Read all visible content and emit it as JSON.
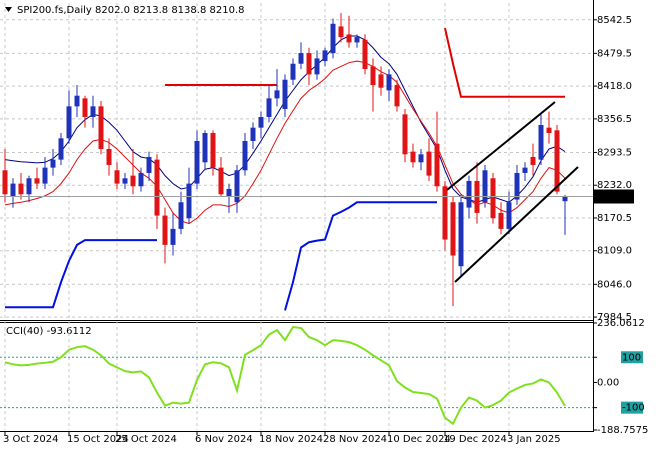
{
  "chart_data": [
    {
      "type": "candlestick",
      "title": "SPI200.fs,Daily  8202.0 8213.8 8138.8 8210.8",
      "categories": [
        "3 Oct 2024",
        null,
        null,
        null,
        null,
        null,
        null,
        null,
        "15 Oct 2024",
        null,
        null,
        null,
        null,
        null,
        "25 Oct 2024",
        null,
        null,
        null,
        null,
        null,
        null,
        null,
        null,
        null,
        "6 Nov 2024",
        null,
        null,
        null,
        null,
        null,
        null,
        null,
        "18 Nov 2024",
        null,
        null,
        null,
        null,
        null,
        null,
        null,
        "28 Nov 2024",
        null,
        null,
        null,
        null,
        null,
        null,
        null,
        "10 Dec 2024",
        null,
        null,
        null,
        null,
        null,
        null,
        "19 Dec 2024",
        null,
        null,
        null,
        null,
        null,
        null,
        null,
        "3 Jan 2025",
        null,
        null,
        null,
        null,
        null,
        null,
        null
      ],
      "open": [
        8260,
        8210,
        8235,
        8215,
        8245,
        8235,
        8265,
        8280,
        8320,
        8380,
        8395,
        8360,
        8380,
        8300,
        8260,
        8235,
        8250,
        8230,
        8255,
        8280,
        8175,
        8120,
        8150,
        8170,
        8235,
        8275,
        8330,
        8265,
        8210,
        8200,
        8260,
        8315,
        8340,
        8360,
        8395,
        8375,
        8430,
        8460,
        8480,
        8440,
        8465,
        8480,
        8530,
        8515,
        8500,
        8505,
        8455,
        8440,
        8410,
        8420,
        8365,
        8295,
        8275,
        8295,
        8310,
        8230,
        8200,
        8080,
        8190,
        8240,
        8200,
        8245,
        8180,
        8150,
        8205,
        8255,
        8285,
        8280,
        8340,
        8335,
        8202.0
      ],
      "high": [
        8300,
        8245,
        8255,
        8250,
        8265,
        8285,
        8300,
        8330,
        8410,
        8420,
        8400,
        8400,
        8390,
        8320,
        8275,
        8255,
        8300,
        8265,
        8295,
        8290,
        8190,
        8180,
        8220,
        8265,
        8335,
        8335,
        8335,
        8285,
        8235,
        8270,
        8330,
        8350,
        8370,
        8420,
        8450,
        8440,
        8470,
        8500,
        8490,
        8485,
        8490,
        8545,
        8555,
        8550,
        8515,
        8515,
        8470,
        8455,
        8450,
        8430,
        8375,
        8310,
        8300,
        8320,
        8370,
        8240,
        8210,
        8215,
        8250,
        8275,
        8270,
        8255,
        8200,
        8220,
        8270,
        8275,
        8310,
        8365,
        8370,
        8345,
        8213.8
      ],
      "low": [
        8200,
        8190,
        8205,
        8200,
        8225,
        8225,
        8250,
        8270,
        8310,
        8360,
        8340,
        8340,
        8290,
        8250,
        8225,
        8225,
        8215,
        8220,
        8240,
        8150,
        8085,
        8100,
        8140,
        8160,
        8225,
        8260,
        8250,
        8210,
        8180,
        8180,
        8250,
        8300,
        8320,
        8350,
        8380,
        8360,
        8420,
        8450,
        8420,
        8430,
        8455,
        8470,
        8500,
        8490,
        8490,
        8440,
        8370,
        8400,
        8390,
        8370,
        8275,
        8265,
        8260,
        8240,
        8220,
        8110,
        8005,
        8060,
        8170,
        8160,
        8190,
        8160,
        8140,
        8140,
        8195,
        8240,
        8250,
        8270,
        8310,
        8215,
        8138.8
      ],
      "close": [
        8215,
        8235,
        8215,
        8245,
        8235,
        8265,
        8280,
        8320,
        8380,
        8400,
        8360,
        8380,
        8300,
        8270,
        8235,
        8245,
        8230,
        8255,
        8285,
        8175,
        8120,
        8150,
        8200,
        8235,
        8315,
        8330,
        8265,
        8215,
        8225,
        8260,
        8315,
        8340,
        8360,
        8395,
        8410,
        8430,
        8460,
        8480,
        8440,
        8470,
        8485,
        8535,
        8510,
        8500,
        8510,
        8450,
        8420,
        8415,
        8440,
        8380,
        8290,
        8275,
        8290,
        8250,
        8230,
        8130,
        8100,
        8200,
        8240,
        8180,
        8260,
        8170,
        8150,
        8200,
        8255,
        8265,
        8270,
        8345,
        8330,
        8220,
        8210.8
      ],
      "colors": {
        "up": "#1f33b8",
        "down": "#e01414"
      },
      "lines": [
        {
          "color": "#000080",
          "values": [
            8280,
            8278,
            8276,
            8275,
            8274,
            8275,
            8282,
            8295,
            8315,
            8340,
            8355,
            8365,
            8362,
            8350,
            8335,
            8315,
            8295,
            8285,
            8282,
            8270,
            8250,
            8235,
            8225,
            8228,
            8245,
            8262,
            8265,
            8258,
            8250,
            8255,
            8270,
            8292,
            8315,
            8340,
            8365,
            8390,
            8410,
            8430,
            8445,
            8458,
            8472,
            8490,
            8505,
            8512,
            8512,
            8505,
            8490,
            8472,
            8460,
            8440,
            8410,
            8380,
            8350,
            8325,
            8300,
            8260,
            8225,
            8210,
            8205,
            8200,
            8205,
            8210,
            8205,
            8200,
            8212,
            8228,
            8248,
            8278,
            8300,
            8305,
            8295
          ]
        },
        {
          "color": "#dd1111",
          "values": [
            8195,
            8198,
            8200,
            8203,
            8207,
            8212,
            8220,
            8235,
            8255,
            8280,
            8300,
            8315,
            8318,
            8312,
            8300,
            8285,
            8270,
            8255,
            8245,
            8230,
            8205,
            8180,
            8165,
            8160,
            8170,
            8185,
            8195,
            8195,
            8192,
            8198,
            8212,
            8235,
            8260,
            8290,
            8320,
            8348,
            8372,
            8395,
            8410,
            8420,
            8432,
            8448,
            8455,
            8462,
            8465,
            8462,
            8455,
            8445,
            8438,
            8425,
            8400,
            8375,
            8352,
            8330,
            8305,
            8270,
            8235,
            8215,
            8205,
            8195,
            8200,
            8195,
            8185,
            8180,
            8190,
            8205,
            8220,
            8245,
            8265,
            8260,
            8245
          ]
        },
        {
          "color": "#0010e0",
          "values": [
            8003,
            8003,
            8003,
            8003,
            8003,
            8003,
            8003,
            8050,
            8090,
            8120,
            8129,
            8129,
            8129,
            8129,
            8129,
            8129,
            8129,
            8129,
            8129,
            8129,
            null,
            null,
            null,
            null,
            null,
            null,
            null,
            null,
            null,
            null,
            null,
            null,
            null,
            null,
            null,
            7997,
            8050,
            8115,
            8125,
            8128,
            8130,
            8175,
            8182,
            8190,
            8200,
            8200,
            8200,
            8200,
            8200,
            8200,
            8200,
            8200,
            8200,
            8200,
            8200,
            null,
            null,
            null,
            null,
            null,
            null,
            null,
            null,
            null,
            null,
            null,
            null,
            null,
            null,
            null,
            null
          ]
        },
        {
          "color": "#e00000",
          "values": [
            null,
            null,
            null,
            null,
            null,
            null,
            null,
            null,
            null,
            null,
            null,
            null,
            null,
            null,
            null,
            null,
            null,
            null,
            null,
            null,
            8420,
            8420,
            8420,
            8420,
            8420,
            8420,
            8420,
            8420,
            8420,
            8420,
            8420,
            8420,
            8420,
            8420,
            8420,
            null,
            null,
            null,
            null,
            null,
            null,
            null,
            null,
            null,
            null,
            null,
            null,
            null,
            null,
            null,
            null,
            null,
            null,
            null,
            null,
            8527,
            8460,
            8398,
            8398,
            8398,
            8398,
            8398,
            8398,
            8398,
            8398,
            8398,
            8398,
            8398,
            8398,
            8398,
            8398
          ]
        }
      ],
      "ylim": [
        7979,
        8574
      ],
      "yticks": [
        {
          "value": 8542.5,
          "label": "8542.5"
        },
        {
          "value": 8479.5,
          "label": "8479.5"
        },
        {
          "value": 8418,
          "label": "8418.0"
        },
        {
          "value": 8356.5,
          "label": "8356.5"
        },
        {
          "value": 8293.5,
          "label": "8293.5"
        },
        {
          "value": 8232,
          "label": "8232.0"
        },
        {
          "value": 8170.5,
          "label": "8170.5"
        },
        {
          "value": 8109,
          "label": "8109.0"
        },
        {
          "value": 8046,
          "label": "8046.0"
        },
        {
          "value": 7984.5,
          "label": "7984.5"
        }
      ],
      "grid": true
    },
    {
      "type": "line",
      "title": "CCI(40) -93.6112",
      "color": "#80e020",
      "values": [
        80,
        72,
        68,
        70,
        75,
        78,
        82,
        100,
        130,
        140,
        144,
        130,
        108,
        75,
        60,
        45,
        40,
        44,
        20,
        -40,
        -92,
        -80,
        -84,
        -80,
        10,
        72,
        80,
        76,
        60,
        -32,
        110,
        128,
        148,
        190,
        208,
        168,
        220,
        216,
        180,
        168,
        148,
        168,
        165,
        160,
        148,
        130,
        108,
        88,
        68,
        5,
        -20,
        -38,
        -42,
        -46,
        -64,
        -140,
        -164,
        -100,
        -60,
        -72,
        -100,
        -90,
        -72,
        -40,
        -24,
        -10,
        -4,
        12,
        0,
        -40,
        -93.6112
      ],
      "ylim": [
        -188.7575,
        236.0612
      ],
      "yticks": [
        236.0612,
        100,
        {
          "value": 0,
          "label": "0.00"
        },
        -100,
        -188.7575
      ],
      "levels": [
        100,
        -100
      ],
      "level_color": "#20a0a0"
    }
  ]
}
